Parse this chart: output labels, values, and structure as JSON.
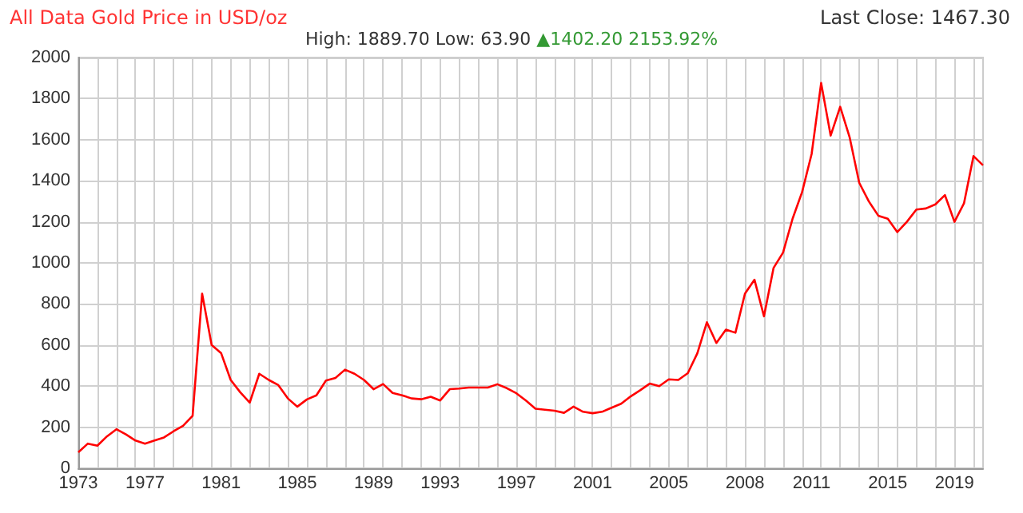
{
  "chart_data": {
    "type": "line",
    "title": "All Data Gold Price in USD/oz",
    "subtitle": "High: 1889.70 Low: 63.90",
    "annotations": [
      "▲1402.20 2153.92%",
      "Last Close: 1467.30"
    ],
    "categories": [
      "1973",
      null,
      null,
      null,
      null,
      null,
      null,
      "1977",
      null,
      null,
      null,
      null,
      null,
      null,
      null,
      "1981",
      null,
      null,
      null,
      null,
      null,
      null,
      null,
      "1985",
      null,
      null,
      null,
      null,
      null,
      null,
      null,
      "1989",
      null,
      null,
      null,
      null,
      null,
      null,
      "1993",
      null,
      null,
      null,
      null,
      null,
      null,
      null,
      "1997",
      null,
      null,
      null,
      null,
      null,
      null,
      null,
      "2001",
      null,
      null,
      null,
      null,
      null,
      null,
      null,
      "2005",
      null,
      null,
      null,
      null,
      null,
      null,
      null,
      "2008",
      null,
      null,
      null,
      null,
      null,
      null,
      "2011",
      null,
      null,
      null,
      null,
      null,
      null,
      null,
      "2015",
      null,
      null,
      null,
      null,
      null,
      null,
      "2019",
      null,
      null,
      null
    ],
    "series": [
      {
        "color": "#ff0000",
        "values": [
          78,
          120,
          110,
          155,
          190,
          165,
          135,
          120,
          135,
          150,
          180,
          207,
          255,
          850,
          600,
          560,
          430,
          370,
          320,
          460,
          430,
          405,
          340,
          300,
          335,
          355,
          427,
          440,
          480,
          460,
          430,
          385,
          410,
          367,
          355,
          340,
          336,
          348,
          330,
          385,
          388,
          393,
          393,
          393,
          409,
          390,
          365,
          330,
          290,
          285,
          280,
          270,
          300,
          275,
          268,
          275,
          295,
          314,
          350,
          380,
          412,
          400,
          433,
          430,
          463,
          560,
          711,
          610,
          675,
          660,
          850,
          918,
          740,
          975,
          1050,
          1215,
          1345,
          1530,
          1876,
          1620,
          1760,
          1610,
          1390,
          1300,
          1230,
          1215,
          1150,
          1200,
          1260,
          1265,
          1285,
          1330,
          1200,
          1290,
          1520,
          1475
        ]
      }
    ],
    "ylim": [
      0,
      2000
    ],
    "yticks": [
      0,
      200,
      400,
      600,
      800,
      1000,
      1200,
      1400,
      1600,
      1800,
      2000
    ],
    "grid": true,
    "marker": "none",
    "line_style": "solid"
  }
}
